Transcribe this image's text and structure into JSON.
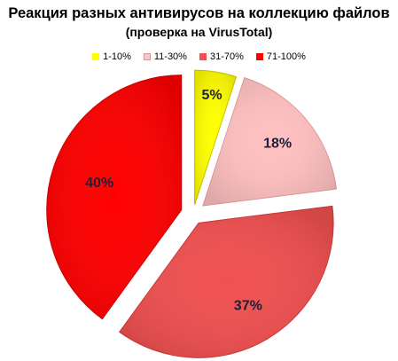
{
  "chart_data": {
    "type": "pie",
    "title": "Реакция разных антивирусов на коллекцию файлов",
    "subtitle": "(проверка на VirusTotal)",
    "legend_position": "top",
    "exploded": true,
    "categories": [
      "1-10%",
      "11-30%",
      "31-70%",
      "71-100%"
    ],
    "values": [
      5,
      18,
      37,
      40
    ],
    "labels": [
      "5%",
      "18%",
      "37%",
      "40%"
    ],
    "colors": [
      "#ffff00",
      "#ffc0c0",
      "#f05050",
      "#ff0000"
    ]
  }
}
